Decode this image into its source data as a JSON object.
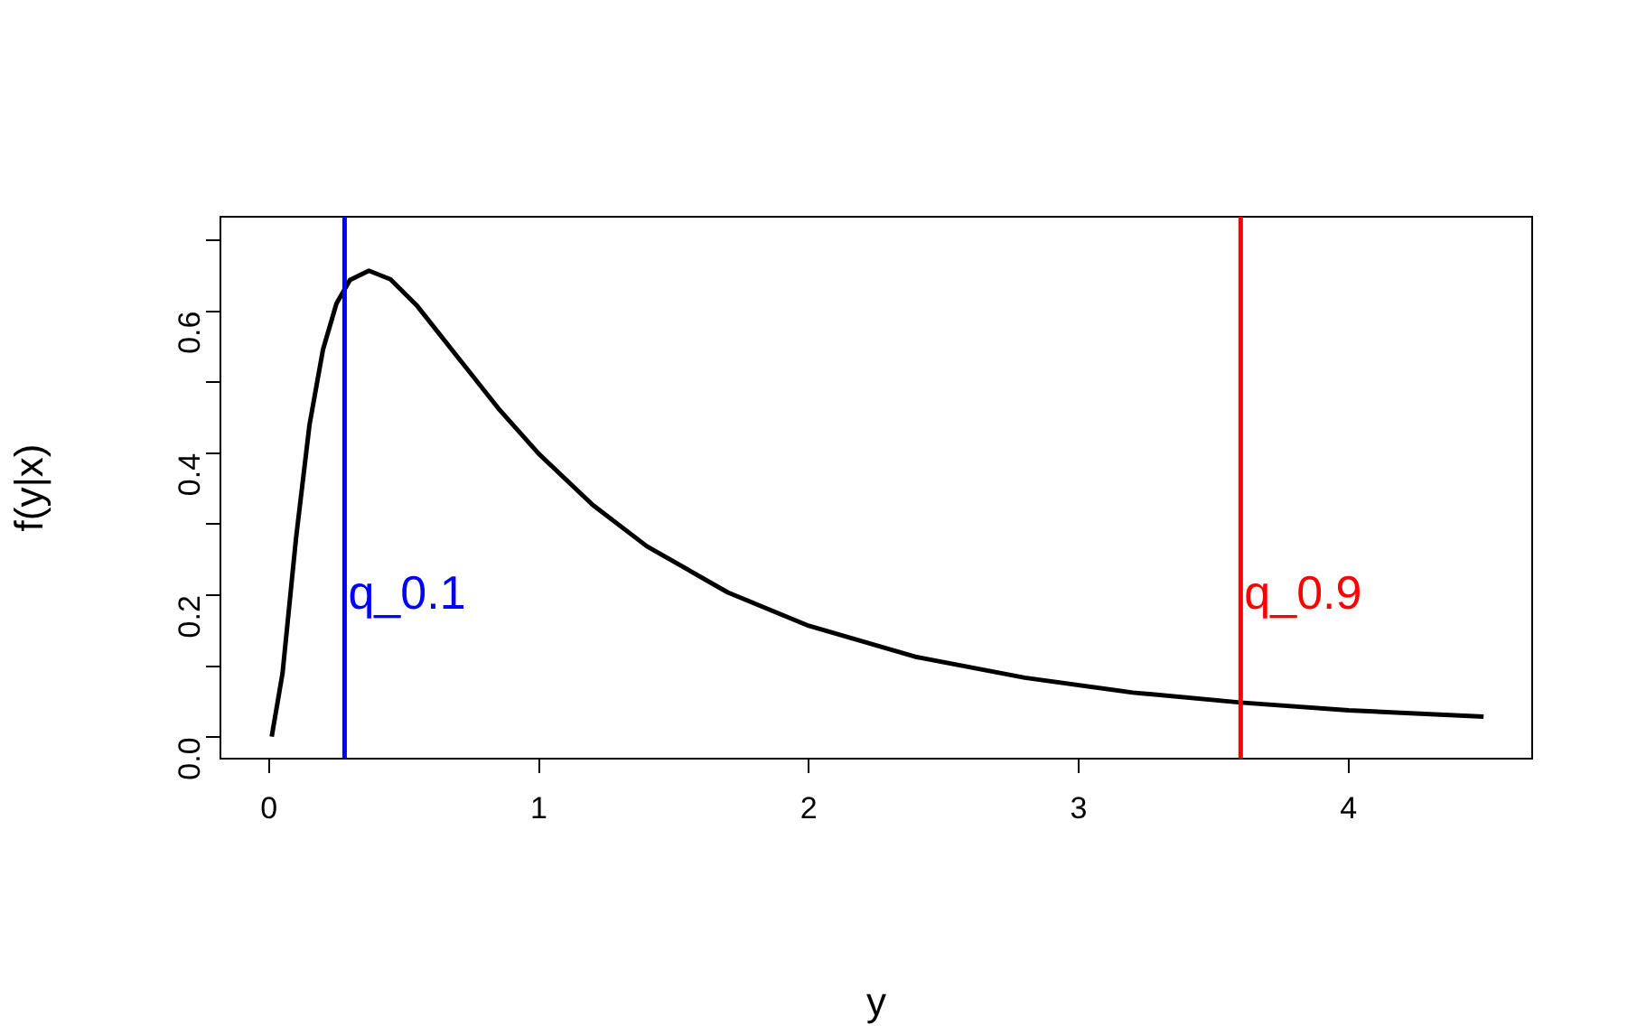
{
  "chart_data": {
    "type": "line",
    "xlabel": "y",
    "ylabel": "f(y|x)",
    "x": [
      0.01,
      0.05,
      0.1,
      0.15,
      0.2,
      0.25,
      0.3,
      0.37,
      0.45,
      0.55,
      0.7,
      0.85,
      1.0,
      1.2,
      1.4,
      1.7,
      2.0,
      2.4,
      2.8,
      3.2,
      3.6,
      4.0,
      4.5
    ],
    "series": [
      {
        "color": "#000000",
        "values": [
          0.001,
          0.09,
          0.28,
          0.44,
          0.546,
          0.611,
          0.644,
          0.657,
          0.645,
          0.607,
          0.535,
          0.463,
          0.399,
          0.327,
          0.269,
          0.204,
          0.157,
          0.113,
          0.084,
          0.063,
          0.049,
          0.038,
          0.029
        ]
      }
    ],
    "xlim": [
      -0.18,
      4.68
    ],
    "xticks": [
      0,
      1,
      2,
      3,
      4
    ],
    "ylim": [
      -0.03,
      0.733
    ],
    "yticks": [
      {
        "value": 0,
        "label": "0.0"
      },
      {
        "value": 0.1,
        "label": null
      },
      {
        "value": 0.2,
        "label": "0.2"
      },
      {
        "value": 0.3,
        "label": null
      },
      {
        "value": 0.4,
        "label": "0.4"
      },
      {
        "value": 0.5,
        "label": null
      },
      {
        "value": 0.6,
        "label": "0.6"
      },
      {
        "value": 0.7,
        "label": null
      }
    ],
    "ref_lines": [
      {
        "axis": "x",
        "value": 0.28,
        "label": "q_0.1",
        "color": "#0000ff"
      },
      {
        "axis": "x",
        "value": 3.6,
        "label": "q_0.9",
        "color": "#ff0000"
      }
    ],
    "grid": false,
    "legend": false,
    "marker": "none",
    "line_style": "solid"
  }
}
